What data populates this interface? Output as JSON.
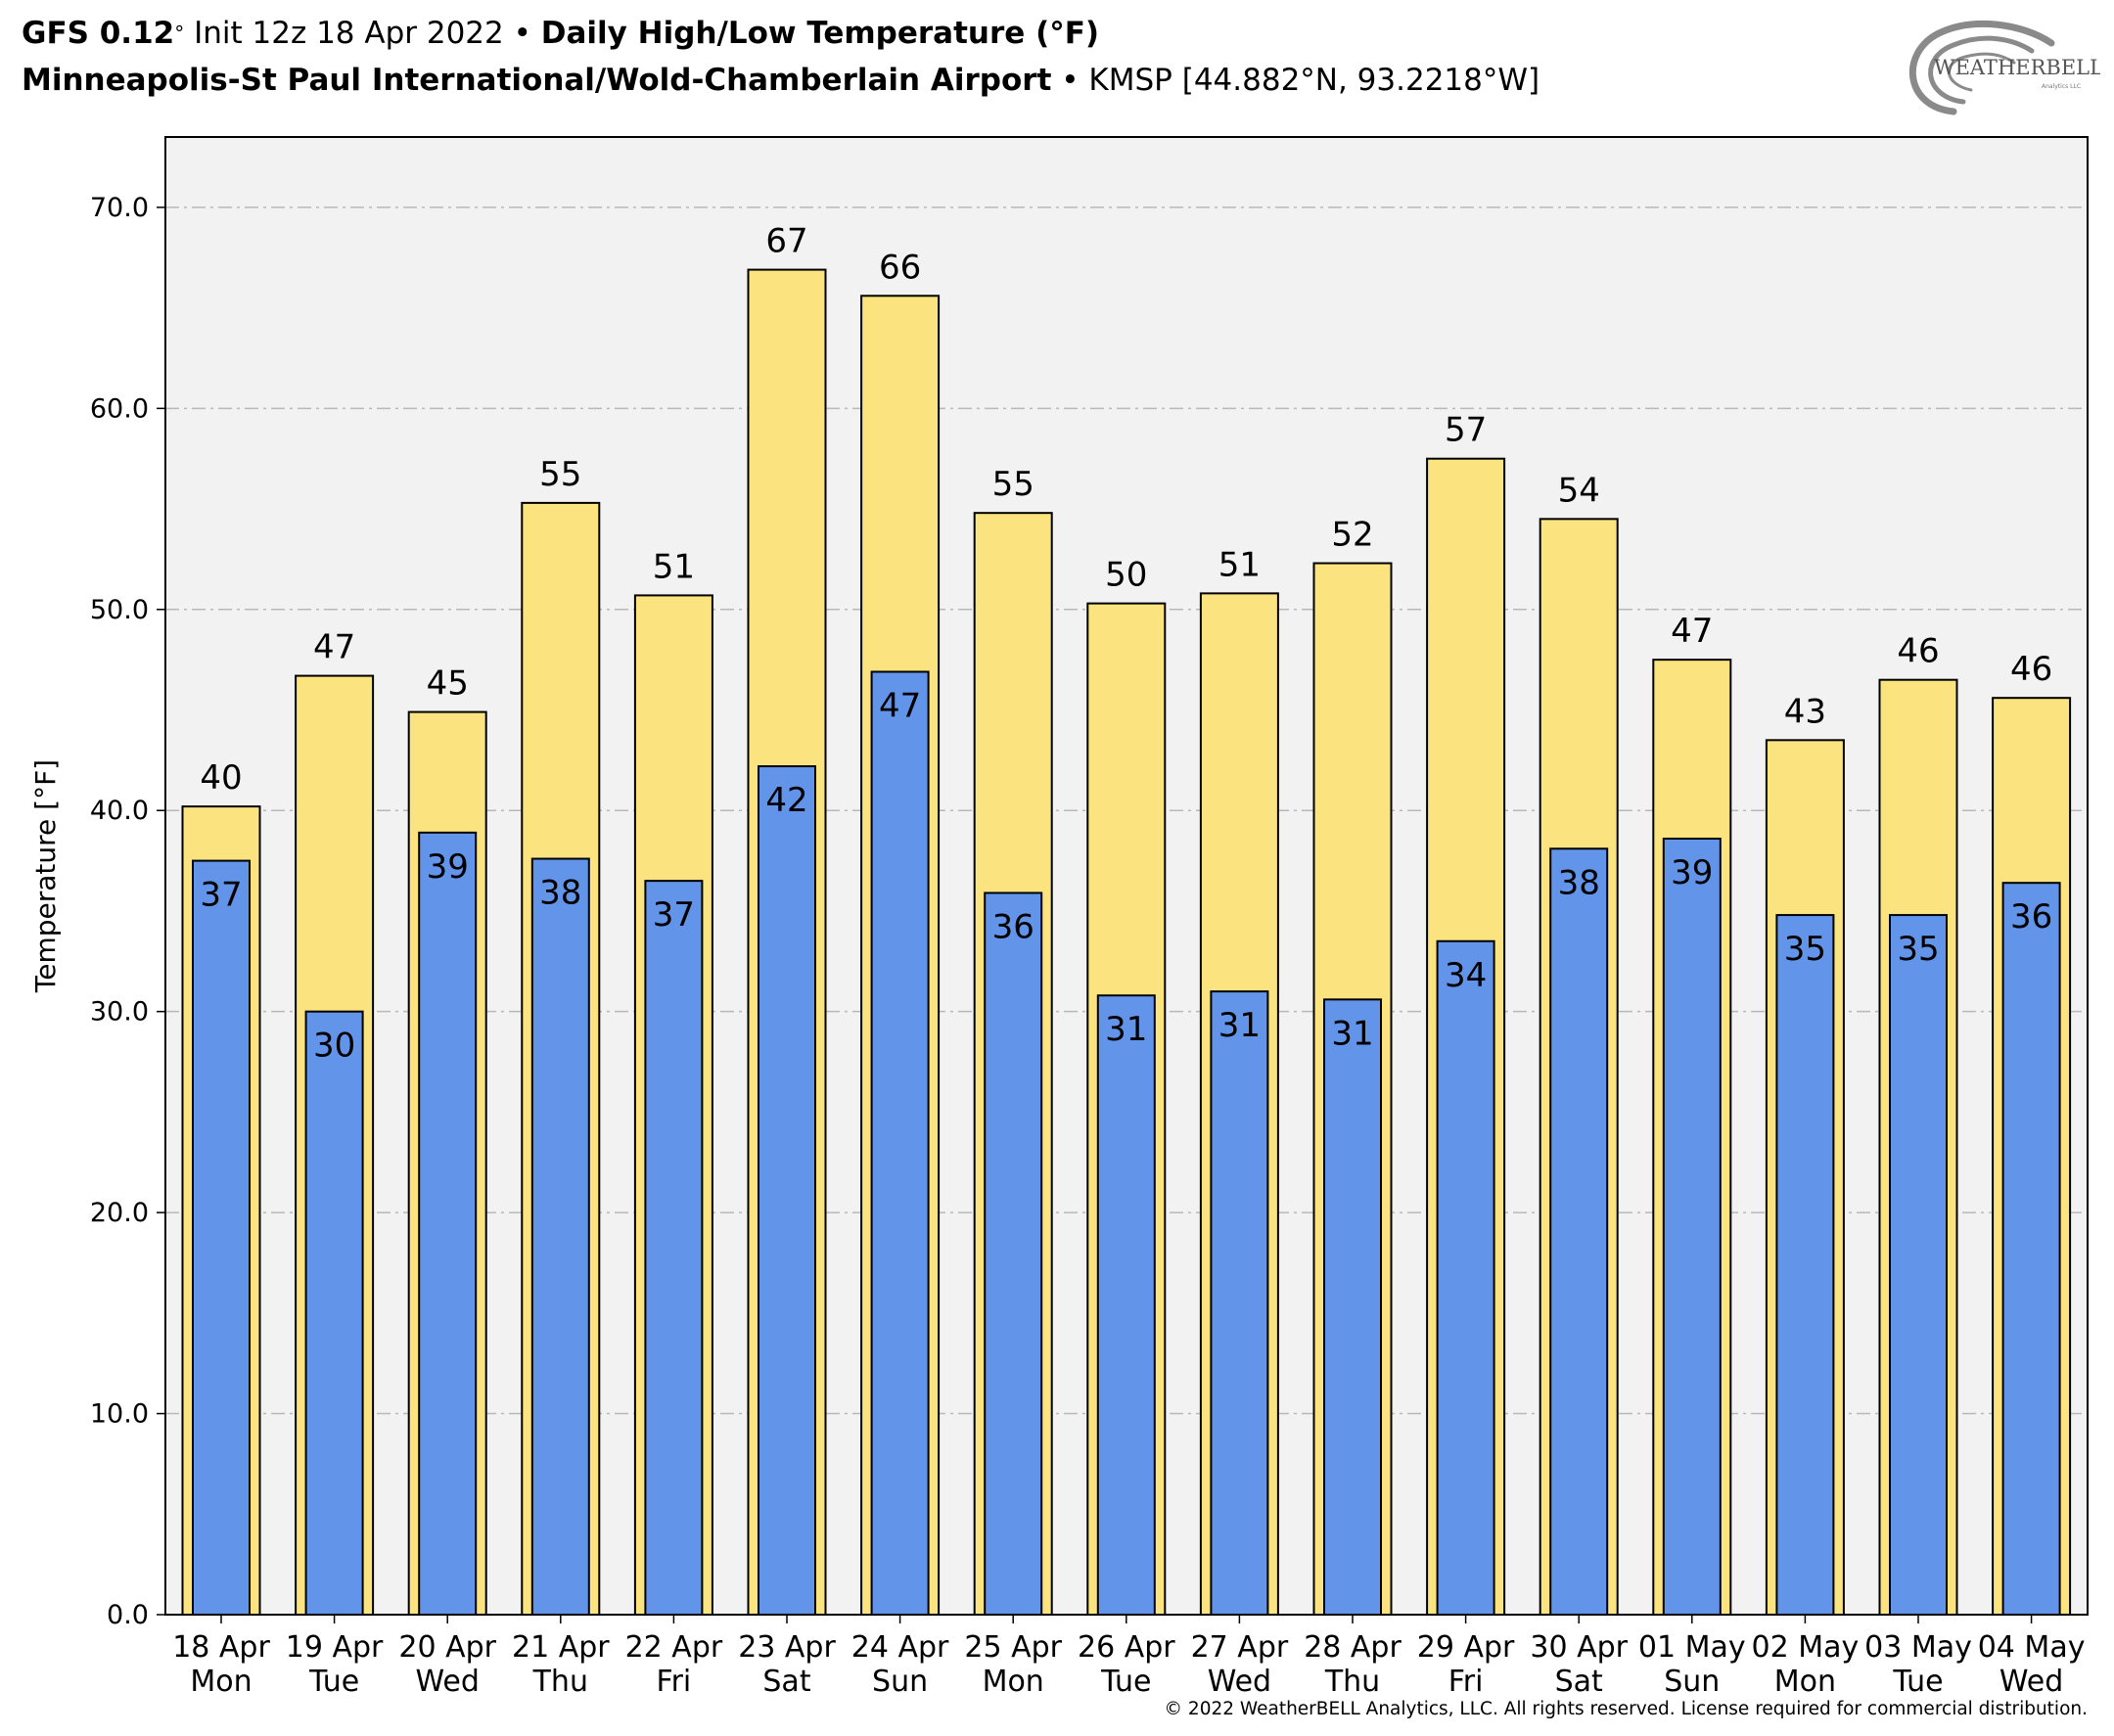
{
  "header": {
    "line1": {
      "model": "GFS 0.12",
      "deg": "°",
      "init": "Init 12z 18 Apr 2022",
      "sep": "•",
      "product": "Daily High/Low Temperature (°F)"
    },
    "line2": {
      "station_name": "Minneapolis-St Paul International/Wold-Chamberlain Airport",
      "sep": "•",
      "station_info": "KMSP [44.882°N, 93.2218°W]"
    }
  },
  "logo": {
    "text": "WEATHERBELL",
    "subtext": "Analytics LLC"
  },
  "copyright": "© 2022 WeatherBELL Analytics, LLC. All rights reserved. License required for commercial distribution.",
  "colors": {
    "high": "#fbe47f",
    "low": "#6294e9",
    "plot_bg": "#f2f2f2",
    "grid": "#b8b8b8"
  },
  "chart_data": {
    "type": "bar",
    "ylabel": "Temperature [°F]",
    "ylim": [
      0,
      73.5
    ],
    "yticks": [
      "0.0",
      "10.0",
      "20.0",
      "30.0",
      "40.0",
      "50.0",
      "60.0",
      "70.0"
    ],
    "grid": "horizontal dashed",
    "categories": [
      [
        "18 Apr",
        "Mon"
      ],
      [
        "19 Apr",
        "Tue"
      ],
      [
        "20 Apr",
        "Wed"
      ],
      [
        "21 Apr",
        "Thu"
      ],
      [
        "22 Apr",
        "Fri"
      ],
      [
        "23 Apr",
        "Sat"
      ],
      [
        "24 Apr",
        "Sun"
      ],
      [
        "25 Apr",
        "Mon"
      ],
      [
        "26 Apr",
        "Tue"
      ],
      [
        "27 Apr",
        "Wed"
      ],
      [
        "28 Apr",
        "Thu"
      ],
      [
        "29 Apr",
        "Fri"
      ],
      [
        "30 Apr",
        "Sat"
      ],
      [
        "01 May",
        "Sun"
      ],
      [
        "02 May",
        "Mon"
      ],
      [
        "03 May",
        "Tue"
      ],
      [
        "04 May",
        "Wed"
      ]
    ],
    "series": [
      {
        "key": "high",
        "values": [
          40.2,
          46.7,
          44.9,
          55.3,
          50.7,
          66.9,
          65.6,
          54.8,
          50.3,
          50.8,
          52.3,
          57.5,
          54.5,
          47.5,
          43.5,
          46.5,
          45.6
        ],
        "labels": [
          "40",
          "47",
          "45",
          "55",
          "51",
          "67",
          "66",
          "55",
          "50",
          "51",
          "52",
          "57",
          "54",
          "47",
          "43",
          "46",
          "46"
        ]
      },
      {
        "key": "low",
        "values": [
          37.5,
          30.0,
          38.9,
          37.6,
          36.5,
          42.2,
          46.9,
          35.9,
          30.8,
          31.0,
          30.6,
          33.5,
          38.1,
          38.6,
          34.8,
          34.8,
          36.4
        ],
        "labels": [
          "37",
          "30",
          "39",
          "38",
          "37",
          "42",
          "47",
          "36",
          "31",
          "31",
          "31",
          "34",
          "38",
          "39",
          "35",
          "35",
          "36"
        ]
      }
    ]
  }
}
